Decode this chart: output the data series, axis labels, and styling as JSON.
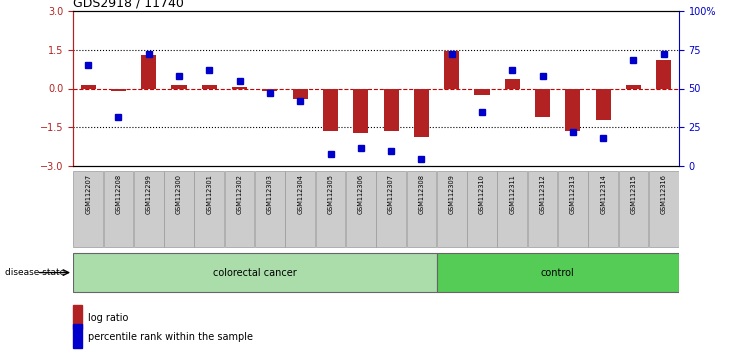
{
  "title": "GDS2918 / 11740",
  "samples": [
    "GSM112207",
    "GSM112208",
    "GSM112299",
    "GSM112300",
    "GSM112301",
    "GSM112302",
    "GSM112303",
    "GSM112304",
    "GSM112305",
    "GSM112306",
    "GSM112307",
    "GSM112308",
    "GSM112309",
    "GSM112310",
    "GSM112311",
    "GSM112312",
    "GSM112313",
    "GSM112314",
    "GSM112315",
    "GSM112316"
  ],
  "log_ratio": [
    0.15,
    -0.08,
    1.3,
    0.12,
    0.15,
    0.05,
    -0.08,
    -0.4,
    -1.65,
    -1.7,
    -1.65,
    -1.85,
    1.45,
    -0.25,
    0.35,
    -1.1,
    -1.65,
    -1.2,
    0.12,
    1.1
  ],
  "percentile": [
    65,
    32,
    72,
    58,
    62,
    55,
    47,
    42,
    8,
    12,
    10,
    5,
    72,
    35,
    62,
    58,
    22,
    18,
    68,
    72
  ],
  "colorectal_count": 12,
  "control_count": 8,
  "bar_color": "#b22222",
  "dot_color": "#0000cc",
  "zero_line_color": "#cc0000",
  "dotted_line_color": "#000000",
  "bg_color": "#ffffff",
  "ylim_left": [
    -3,
    3
  ],
  "yticks_left": [
    -3,
    -1.5,
    0,
    1.5,
    3
  ],
  "yticks_right": [
    0,
    25,
    50,
    75,
    100
  ],
  "colorectal_color": "#aaddaa",
  "control_color": "#55cc55",
  "label_box_color": "#cccccc",
  "title_fontsize": 9,
  "tick_fontsize": 7,
  "label_fontsize": 4.8,
  "disease_fontsize": 7,
  "legend_fontsize": 7
}
